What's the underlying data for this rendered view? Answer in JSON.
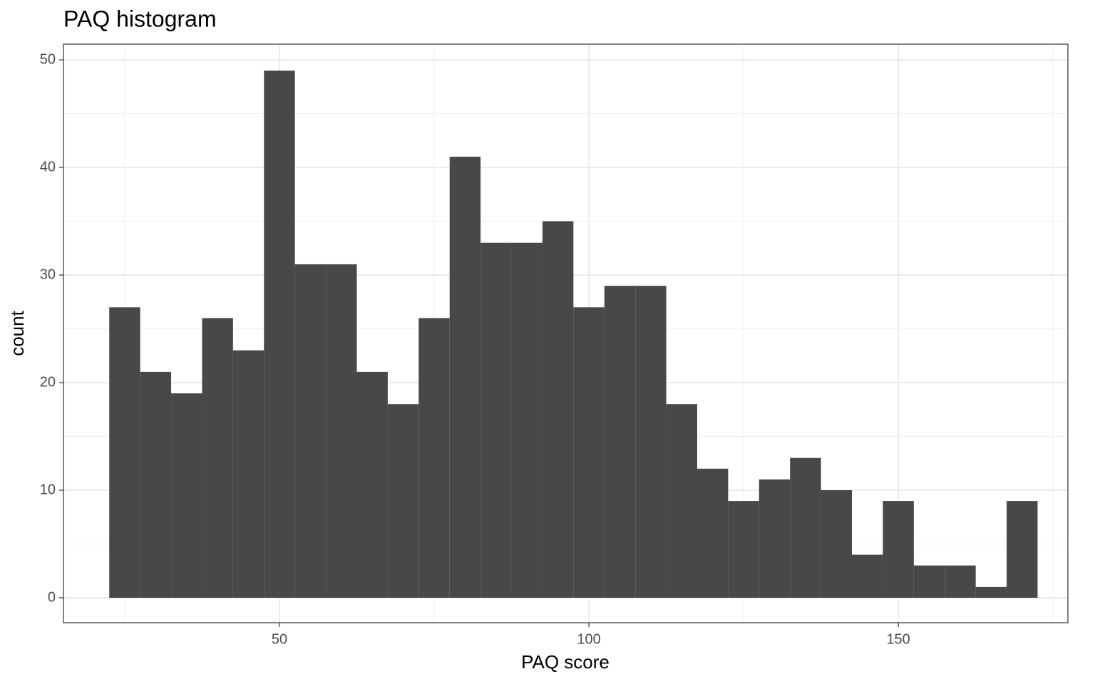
{
  "chart_data": {
    "type": "histogram",
    "title": "PAQ histogram",
    "x_label": "PAQ score",
    "y_label": "count",
    "bins": [
      22.5,
      27.5,
      32.5,
      37.5,
      42.5,
      47.5,
      52.5,
      57.5,
      62.5,
      67.5,
      72.5,
      77.5,
      82.5,
      87.5,
      92.5,
      97.5,
      102.5,
      107.5,
      112.5,
      117.5,
      122.5,
      127.5,
      132.5,
      137.5,
      142.5,
      147.5,
      152.5,
      157.5,
      162.5,
      167.5,
      172.5
    ],
    "values": [
      27,
      21,
      19,
      26,
      23,
      49,
      31,
      31,
      21,
      18,
      26,
      41,
      33,
      33,
      35,
      27,
      29,
      29,
      18,
      12,
      9,
      11,
      13,
      10,
      4,
      9,
      3,
      3,
      1,
      9
    ],
    "color": "#484848",
    "xlim": [
      15.1,
      177.4
    ],
    "xticks": [
      50,
      100,
      150
    ],
    "ylim": [
      -2.32,
      51.46
    ],
    "yticks": [
      0,
      10,
      20,
      30,
      40,
      50
    ],
    "grid": true
  }
}
